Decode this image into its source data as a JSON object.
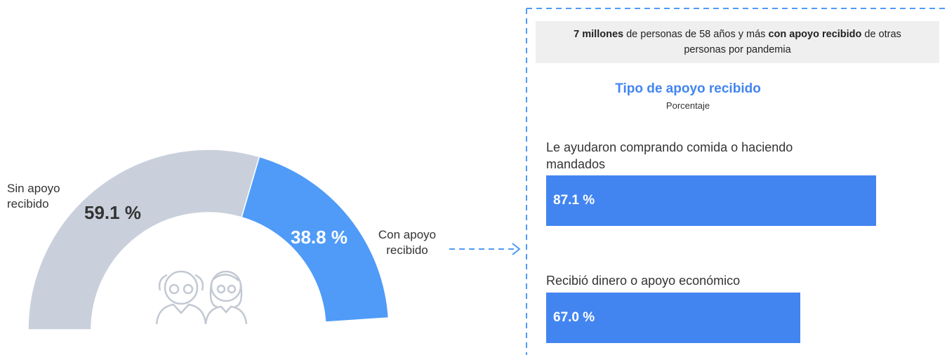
{
  "chart_data": [
    {
      "type": "semi-donut",
      "categories": [
        "Sin apoyo recibido",
        "Con apoyo recibido"
      ],
      "values": [
        59.1,
        38.8
      ],
      "value_labels": [
        "59.1 %",
        "38.8 %"
      ],
      "colors": [
        "#c9d0dc",
        "#4f9bf7"
      ]
    },
    {
      "type": "hbar",
      "header": [
        {
          "text": "7 millones",
          "bold": true
        },
        {
          "text": " de personas de 58 años y más ",
          "bold": false
        },
        {
          "text": "con apoyo recibido",
          "bold": true
        },
        {
          "text": " de otras personas por pandemia",
          "bold": false
        }
      ],
      "title": "Tipo de apoyo recibido",
      "subtitle": "Porcentaje",
      "categories": [
        "Le ayudaron comprando comida o haciendo mandados",
        "Recibió dinero o apoyo económico"
      ],
      "values": [
        87.1,
        67.0
      ],
      "value_labels": [
        "87.1 %",
        "67.0 %"
      ],
      "color": "#4285f0",
      "xlim": [
        0,
        100
      ]
    }
  ]
}
